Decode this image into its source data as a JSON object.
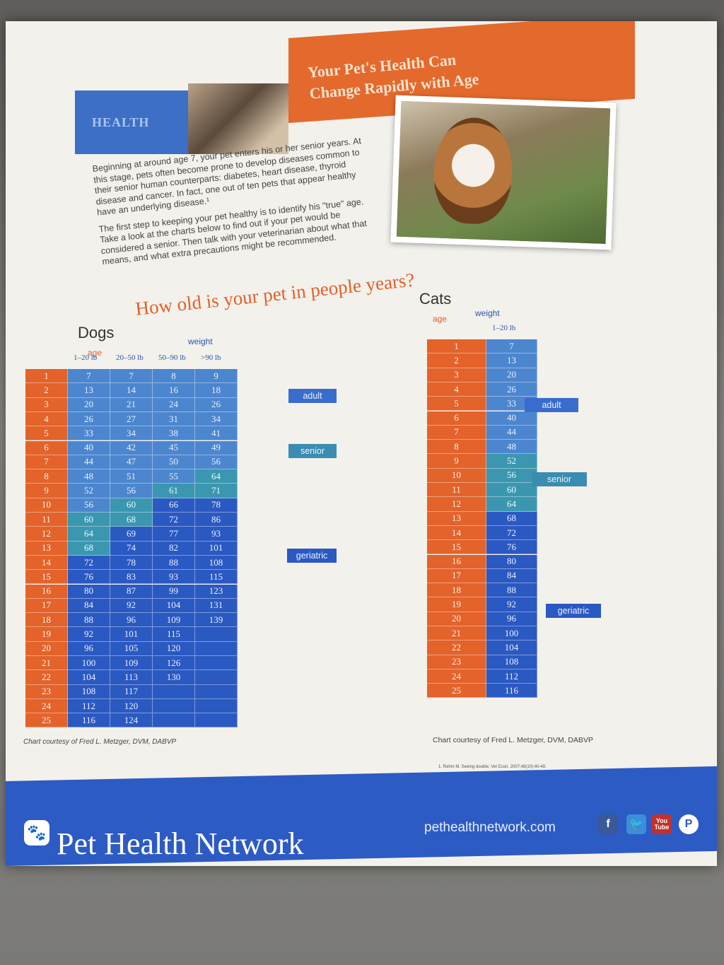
{
  "header": {
    "category": "HEALTH",
    "title_lines": [
      "Your Pet's Health Can",
      "Change Rapidly with Age"
    ]
  },
  "intro": {
    "p1": "Beginning at around age 7, your pet enters his or her senior years. At this stage, pets often become prone to develop diseases common to their senior human counterparts: diabetes, heart disease, thyroid disease and cancer. In fact, one out of ten pets that appear healthy have an underlying disease.¹",
    "p2": "The first step to keeping your pet healthy is to identify his \"true\" age. Take a look at the charts below to find out if your pet would be considered a senior. Then talk with your veterinarian about what that means, and what extra precautions might be recommended."
  },
  "headline": "How old is your pet in people years?",
  "dogs": {
    "title": "Dogs",
    "age_label": "age",
    "weight_label": "weight",
    "columns": [
      "1–20 lb",
      "20–50 lb",
      "50–90 lb",
      ">90 lb"
    ],
    "stage_labels": {
      "adult": "adult",
      "senior": "senior",
      "geriatric": "geriatric"
    },
    "courtesy": "Chart courtesy of Fred L. Metzger, DVM, DABVP"
  },
  "cats": {
    "title": "Cats",
    "age_label": "age",
    "weight_label": "weight",
    "columns": [
      "1–20 lb"
    ],
    "stage_labels": {
      "adult": "adult",
      "senior": "senior",
      "geriatric": "geriatric"
    },
    "courtesy": "Chart courtesy of Fred L. Metzger, DVM, DABVP"
  },
  "footnote": "1. Rehm M. Seeing double. Vet Econ. 2007;48(10):40-48.",
  "footer": {
    "brand": "Pet Health Network",
    "url": "pethealthnetwork.com",
    "social": [
      "facebook-icon",
      "twitter-icon",
      "youtube-icon",
      "pinterest-icon"
    ],
    "youtube_text": "You Tube"
  },
  "chart_data": [
    {
      "type": "table",
      "title": "Dogs",
      "columns": [
        "age",
        "1–20 lb",
        "20–50 lb",
        "50–90 lb",
        ">90 lb"
      ],
      "rows": [
        [
          1,
          7,
          7,
          8,
          9
        ],
        [
          2,
          13,
          14,
          16,
          18
        ],
        [
          3,
          20,
          21,
          24,
          26
        ],
        [
          4,
          26,
          27,
          31,
          34
        ],
        [
          5,
          33,
          34,
          38,
          41
        ],
        [
          6,
          40,
          42,
          45,
          49
        ],
        [
          7,
          44,
          47,
          50,
          56
        ],
        [
          8,
          48,
          51,
          55,
          64
        ],
        [
          9,
          52,
          56,
          61,
          71
        ],
        [
          10,
          56,
          60,
          66,
          78
        ],
        [
          11,
          60,
          68,
          72,
          86
        ],
        [
          12,
          64,
          69,
          77,
          93
        ],
        [
          13,
          68,
          74,
          82,
          101
        ],
        [
          14,
          72,
          78,
          88,
          108
        ],
        [
          15,
          76,
          83,
          93,
          115
        ],
        [
          16,
          80,
          87,
          99,
          123
        ],
        [
          17,
          84,
          92,
          104,
          131
        ],
        [
          18,
          88,
          96,
          109,
          139
        ],
        [
          19,
          92,
          101,
          115,
          null
        ],
        [
          20,
          96,
          105,
          120,
          null
        ],
        [
          21,
          100,
          109,
          126,
          null
        ],
        [
          22,
          104,
          113,
          130,
          null
        ],
        [
          23,
          108,
          117,
          null,
          null
        ],
        [
          24,
          112,
          120,
          null,
          null
        ],
        [
          25,
          116,
          124,
          null,
          null
        ]
      ],
      "stage_first_senior_age": [
        11,
        10,
        9,
        8
      ],
      "stage_first_geriatric_age": [
        14,
        12,
        10,
        10
      ],
      "colors": {
        "age": "#e3632a",
        "adult": "#4c86cf",
        "senior": "#3b97b0",
        "geriatric": "#2b59c2"
      }
    },
    {
      "type": "table",
      "title": "Cats",
      "columns": [
        "age",
        "1–20 lb"
      ],
      "rows": [
        [
          1,
          7
        ],
        [
          2,
          13
        ],
        [
          3,
          20
        ],
        [
          4,
          26
        ],
        [
          5,
          33
        ],
        [
          6,
          40
        ],
        [
          7,
          44
        ],
        [
          8,
          48
        ],
        [
          9,
          52
        ],
        [
          10,
          56
        ],
        [
          11,
          60
        ],
        [
          12,
          64
        ],
        [
          13,
          68
        ],
        [
          14,
          72
        ],
        [
          15,
          76
        ],
        [
          16,
          80
        ],
        [
          17,
          84
        ],
        [
          18,
          88
        ],
        [
          19,
          92
        ],
        [
          20,
          96
        ],
        [
          21,
          100
        ],
        [
          22,
          104
        ],
        [
          23,
          108
        ],
        [
          24,
          112
        ],
        [
          25,
          116
        ]
      ],
      "stage_first_senior_age": [
        9
      ],
      "stage_first_geriatric_age": [
        13
      ],
      "colors": {
        "age": "#e3632a",
        "adult": "#4c86cf",
        "senior": "#3b97b0",
        "geriatric": "#2b59c2"
      }
    }
  ]
}
